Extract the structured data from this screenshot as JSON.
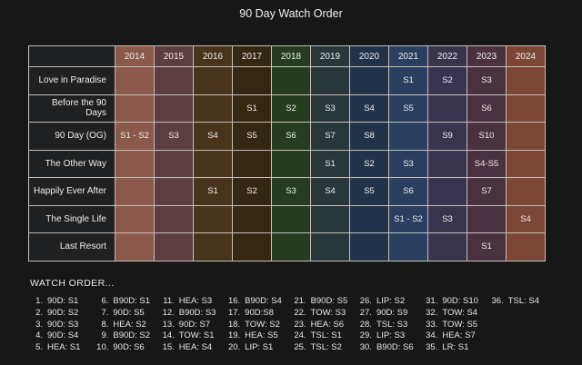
{
  "title": "90 Day Watch Order",
  "chart_data": {
    "type": "table",
    "title": "90 Day Watch Order",
    "columns": [
      "2014",
      "2015",
      "2016",
      "2017",
      "2018",
      "2019",
      "2020",
      "2021",
      "2022",
      "2023",
      "2024"
    ],
    "column_colors": [
      "#8a594a",
      "#5c3d40",
      "#48341a",
      "#362713",
      "#253c1e",
      "#2a373a",
      "#20334a",
      "#2a3f5f",
      "#38344e",
      "#4a3140",
      "#7b4636"
    ],
    "rows": [
      {
        "name": "Love in Paradise",
        "values": [
          "",
          "",
          "",
          "",
          "",
          "",
          "",
          "S1",
          "S2",
          "S3",
          ""
        ]
      },
      {
        "name": "Before the 90 Days",
        "values": [
          "",
          "",
          "",
          "S1",
          "S2",
          "S3",
          "S4",
          "S5",
          "",
          "S6",
          ""
        ]
      },
      {
        "name": "90 Day (OG)",
        "values": [
          "S1 - S2",
          "S3",
          "S4",
          "S5",
          "S6",
          "S7",
          "S8",
          "",
          "S9",
          "S10",
          ""
        ]
      },
      {
        "name": "The Other Way",
        "values": [
          "",
          "",
          "",
          "",
          "",
          "S1",
          "S2",
          "S3",
          "",
          "S4-S5",
          ""
        ]
      },
      {
        "name": "Happily Ever After",
        "values": [
          "",
          "",
          "S1",
          "S2",
          "S3",
          "S4",
          "S5",
          "S6",
          "",
          "S7",
          ""
        ]
      },
      {
        "name": "The Single Life",
        "values": [
          "",
          "",
          "",
          "",
          "",
          "",
          "",
          "S1 - S2",
          "S3",
          "",
          "S4"
        ]
      },
      {
        "name": "Last Resort",
        "values": [
          "",
          "",
          "",
          "",
          "",
          "",
          "",
          "",
          "",
          "S1",
          ""
        ]
      }
    ]
  },
  "watch_order": {
    "heading": "WATCH ORDER...",
    "items": [
      {
        "num": "1.",
        "text": "90D: S1"
      },
      {
        "num": "2.",
        "text": "90D: S2"
      },
      {
        "num": "3.",
        "text": "90D: S3"
      },
      {
        "num": "4.",
        "text": "90D: S4"
      },
      {
        "num": "5.",
        "text": "HEA: S1"
      },
      {
        "num": "6.",
        "text": "B90D: S1"
      },
      {
        "num": "7.",
        "text": "90D: S5"
      },
      {
        "num": "8.",
        "text": "HEA: S2"
      },
      {
        "num": "9.",
        "text": "B90D: S2"
      },
      {
        "num": "10.",
        "text": "90D: S6"
      },
      {
        "num": "11.",
        "text": "HEA: S3"
      },
      {
        "num": "12.",
        "text": "B90D: S3"
      },
      {
        "num": "13.",
        "text": "90D: S7"
      },
      {
        "num": "14.",
        "text": "TOW: S1"
      },
      {
        "num": "15.",
        "text": "HEA: S4"
      },
      {
        "num": "16.",
        "text": "B90D: S4"
      },
      {
        "num": "17.",
        "text": "90D:S8"
      },
      {
        "num": "18.",
        "text": "TOW: S2"
      },
      {
        "num": "19.",
        "text": "HEA: S5"
      },
      {
        "num": "20.",
        "text": "LIP: S1"
      },
      {
        "num": "21.",
        "text": "B90D: S5"
      },
      {
        "num": "22.",
        "text": "TOW: S3"
      },
      {
        "num": "23.",
        "text": "HEA: S6"
      },
      {
        "num": "24.",
        "text": "TSL: S1"
      },
      {
        "num": "25.",
        "text": "TSL: S2"
      },
      {
        "num": "26.",
        "text": "LIP: S2"
      },
      {
        "num": "27.",
        "text": "90D: S9"
      },
      {
        "num": "28.",
        "text": "TSL: S3"
      },
      {
        "num": "29.",
        "text": "LIP: S3"
      },
      {
        "num": "30.",
        "text": "B90D: S6"
      },
      {
        "num": "31.",
        "text": "90D: S10"
      },
      {
        "num": "32.",
        "text": "TOW: S4"
      },
      {
        "num": "33.",
        "text": "TOW: S5"
      },
      {
        "num": "34.",
        "text": "HEA: S7"
      },
      {
        "num": "35.",
        "text": "LR: S1"
      },
      {
        "num": "36.",
        "text": "TSL: S4"
      }
    ]
  }
}
